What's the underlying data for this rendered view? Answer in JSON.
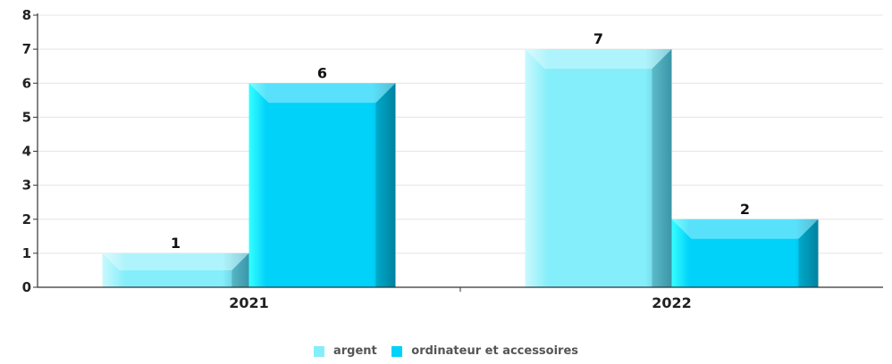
{
  "chart_data": {
    "type": "bar",
    "categories": [
      "2021",
      "2022"
    ],
    "series": [
      {
        "name": "argent",
        "values": [
          1,
          7
        ],
        "color": "#84EEFA"
      },
      {
        "name": "ordinateur et accessoires",
        "values": [
          6,
          2
        ],
        "color": "#00D2FA"
      }
    ],
    "yticks": [
      "0",
      "1",
      "2",
      "3",
      "4",
      "5",
      "6",
      "7",
      "8"
    ],
    "ylim": [
      0,
      8
    ],
    "grid": true,
    "legend_position": "bottom"
  }
}
